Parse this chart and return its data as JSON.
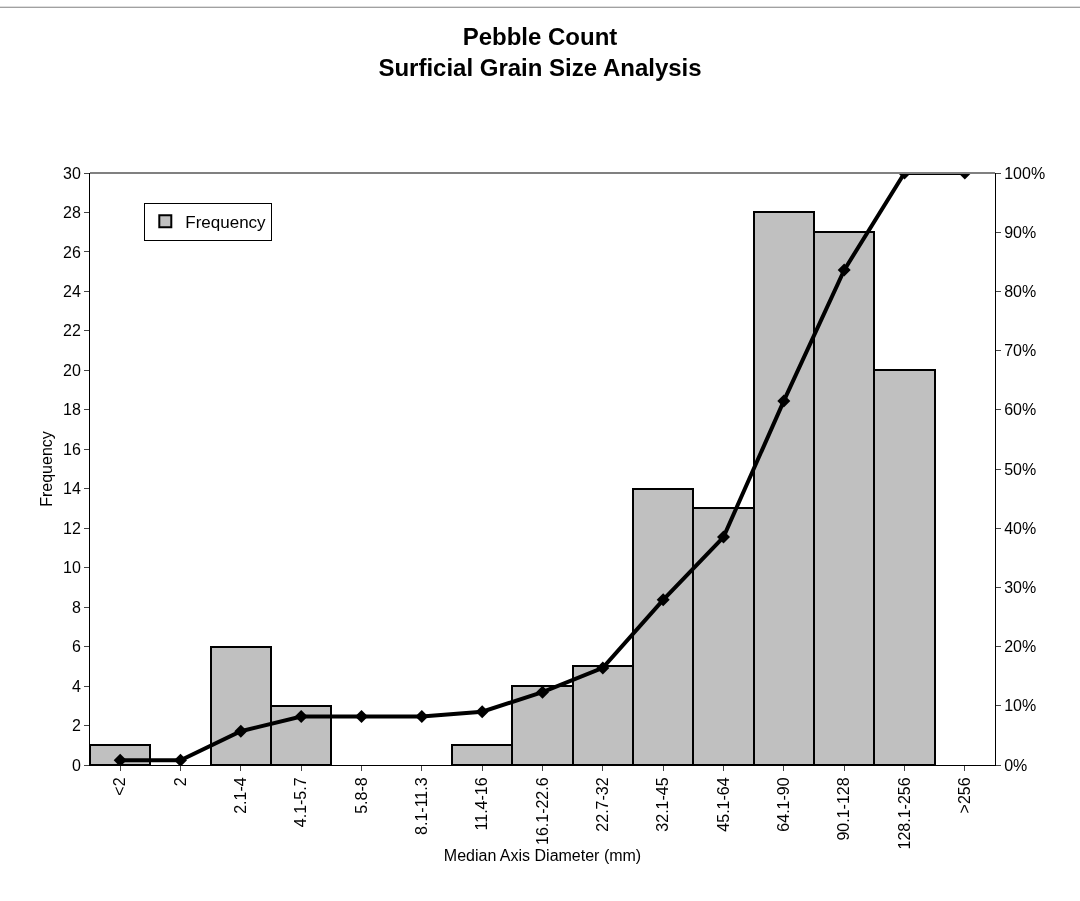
{
  "chart_data": {
    "type": "bar",
    "title": "Pebble Count\nSurficial Grain Size Analysis",
    "xlabel": "Median Axis Diameter (mm)",
    "ylabel": "Frequency",
    "categories": [
      "<2",
      "2",
      "2.1-4",
      "4.1-5.7",
      "5.8-8",
      "8.1-11.3",
      "11.4-16",
      "16.1-22.6",
      "22.7-32",
      "32.1-45",
      "45.1-64",
      "64.1-90",
      "90.1-128",
      "128.1-256",
      ">256"
    ],
    "series": [
      {
        "name": "Frequency",
        "color": "#c0c0c0",
        "values": [
          1,
          0,
          6,
          3,
          0,
          0,
          1,
          4,
          5,
          14,
          13,
          28,
          27,
          20,
          0
        ]
      },
      {
        "type": "line",
        "axis": "y2",
        "color": "#000000",
        "marker": "diamond",
        "line_style": "solid",
        "values": [
          0.8,
          0.8,
          5.7,
          8.2,
          8.2,
          8.2,
          9.0,
          12.3,
          16.4,
          27.9,
          38.5,
          61.5,
          83.6,
          100,
          100
        ]
      }
    ],
    "ylim": [
      0,
      30
    ],
    "yticks": [
      0,
      2,
      4,
      6,
      8,
      10,
      12,
      14,
      16,
      18,
      20,
      22,
      24,
      26,
      28,
      30
    ],
    "y2lim": [
      0,
      100
    ],
    "y2ticks": [
      {
        "value": 0,
        "label": "0%"
      },
      {
        "value": 10,
        "label": "10%"
      },
      {
        "value": 20,
        "label": "20%"
      },
      {
        "value": 30,
        "label": "30%"
      },
      {
        "value": 40,
        "label": "40%"
      },
      {
        "value": 50,
        "label": "50%"
      },
      {
        "value": 60,
        "label": "60%"
      },
      {
        "value": 70,
        "label": "70%"
      },
      {
        "value": 80,
        "label": "80%"
      },
      {
        "value": 90,
        "label": "90%"
      },
      {
        "value": 100,
        "label": "100%"
      }
    ],
    "legend": "top left"
  }
}
